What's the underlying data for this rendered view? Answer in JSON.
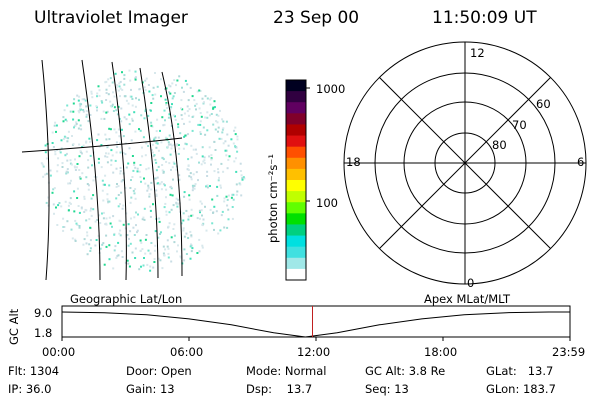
{
  "header": {
    "instrument": "Ultraviolet Imager",
    "date": "23 Sep 00",
    "time": "11:50:09 UT"
  },
  "colorbar": {
    "label": "photon cm⁻²s⁻¹",
    "ticks": [
      "1000",
      "100"
    ],
    "colors": [
      "#000020",
      "#300040",
      "#600060",
      "#80002a",
      "#b00000",
      "#e01010",
      "#ff5000",
      "#ff9000",
      "#ffc000",
      "#ffff00",
      "#c0ff00",
      "#60ff00",
      "#00e000",
      "#00d080",
      "#00e0e0",
      "#40e0e0",
      "#a0e8e8",
      "#ffffff"
    ]
  },
  "polar_plot": {
    "mlt_labels": [
      "12",
      "18",
      "6",
      "0"
    ],
    "lat_labels": [
      "60",
      "70",
      "80"
    ]
  },
  "timeline": {
    "left_title": "Geographic Lat/Lon",
    "right_title": "Apex MLat/MLT",
    "y_label": "GC Alt",
    "y_ticks": [
      "9.0",
      "1.8"
    ],
    "x_ticks": [
      "00:00",
      "06:00",
      "12:00",
      "18:00",
      "23:59"
    ],
    "altitude_series": {
      "time_hours": [
        0,
        2,
        4,
        6,
        8,
        10,
        11.5,
        13,
        15,
        17,
        19,
        21,
        23,
        23.98
      ],
      "alt_re": [
        9.0,
        8.8,
        8.2,
        7.0,
        5.3,
        3.0,
        1.8,
        3.0,
        5.3,
        7.0,
        8.2,
        8.8,
        9.0,
        9.0
      ]
    },
    "marker_time_hours": 11.836,
    "marker_color": "#c02020"
  },
  "info": {
    "flt": "Flt: 1304",
    "ip": "IP: 36.0",
    "door": "Door: Open",
    "gain": "Gain: 13",
    "mode": "Mode: Normal",
    "dsp": "Dsp:    13.7",
    "gcalt": "GC Alt: 3.8 Re",
    "seq": "Seq: 13",
    "glat": "GLat:   13.7",
    "glon": "GLon: 183.7"
  }
}
